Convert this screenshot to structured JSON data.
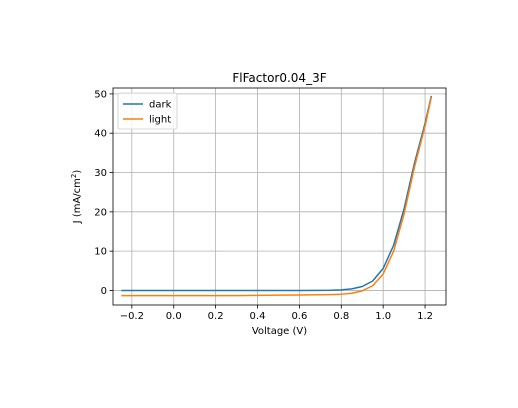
{
  "chart_data": {
    "type": "line",
    "title": "FlFactor0.04_3F",
    "xlabel": "Voltage (V)",
    "ylabel_main": "J  (mA/cm",
    "ylabel_sup": "2",
    "ylabel_close": ")",
    "xlim": [
      -0.29,
      1.3
    ],
    "ylim": [
      -3.7,
      51.5
    ],
    "xticks": [
      -0.2,
      0.0,
      0.2,
      0.4,
      0.6,
      0.8,
      1.0,
      1.2
    ],
    "xtick_labels": [
      "−0.2",
      "0.0",
      "0.2",
      "0.4",
      "0.6",
      "0.8",
      "1.0",
      "1.2"
    ],
    "yticks": [
      0,
      10,
      20,
      30,
      40,
      50
    ],
    "ytick_labels": [
      "0",
      "10",
      "20",
      "30",
      "40",
      "50"
    ],
    "grid": true,
    "legend_position": "top-left",
    "series": [
      {
        "name": "dark",
        "color": "#1f77b4",
        "x": [
          -0.25,
          -0.2,
          -0.1,
          0.0,
          0.1,
          0.2,
          0.3,
          0.4,
          0.5,
          0.6,
          0.7,
          0.75,
          0.8,
          0.85,
          0.9,
          0.95,
          1.0,
          1.05,
          1.1,
          1.15,
          1.2,
          1.23
        ],
        "y": [
          0,
          0,
          0,
          0,
          0,
          0,
          0,
          0,
          0,
          0,
          0.02,
          0.05,
          0.15,
          0.4,
          1.0,
          2.4,
          5.6,
          11.5,
          20.8,
          32.5,
          42.5,
          49.5
        ]
      },
      {
        "name": "light",
        "color": "#ff7f0e",
        "x": [
          -0.25,
          -0.2,
          -0.1,
          0.0,
          0.1,
          0.2,
          0.3,
          0.4,
          0.5,
          0.6,
          0.7,
          0.75,
          0.8,
          0.85,
          0.9,
          0.95,
          1.0,
          1.05,
          1.1,
          1.15,
          1.2,
          1.23
        ],
        "y": [
          -1.3,
          -1.3,
          -1.3,
          -1.3,
          -1.3,
          -1.3,
          -1.3,
          -1.25,
          -1.2,
          -1.15,
          -1.1,
          -1.05,
          -0.95,
          -0.7,
          -0.1,
          1.2,
          4.2,
          10.0,
          19.5,
          31.5,
          41.8,
          49.2
        ]
      }
    ]
  }
}
